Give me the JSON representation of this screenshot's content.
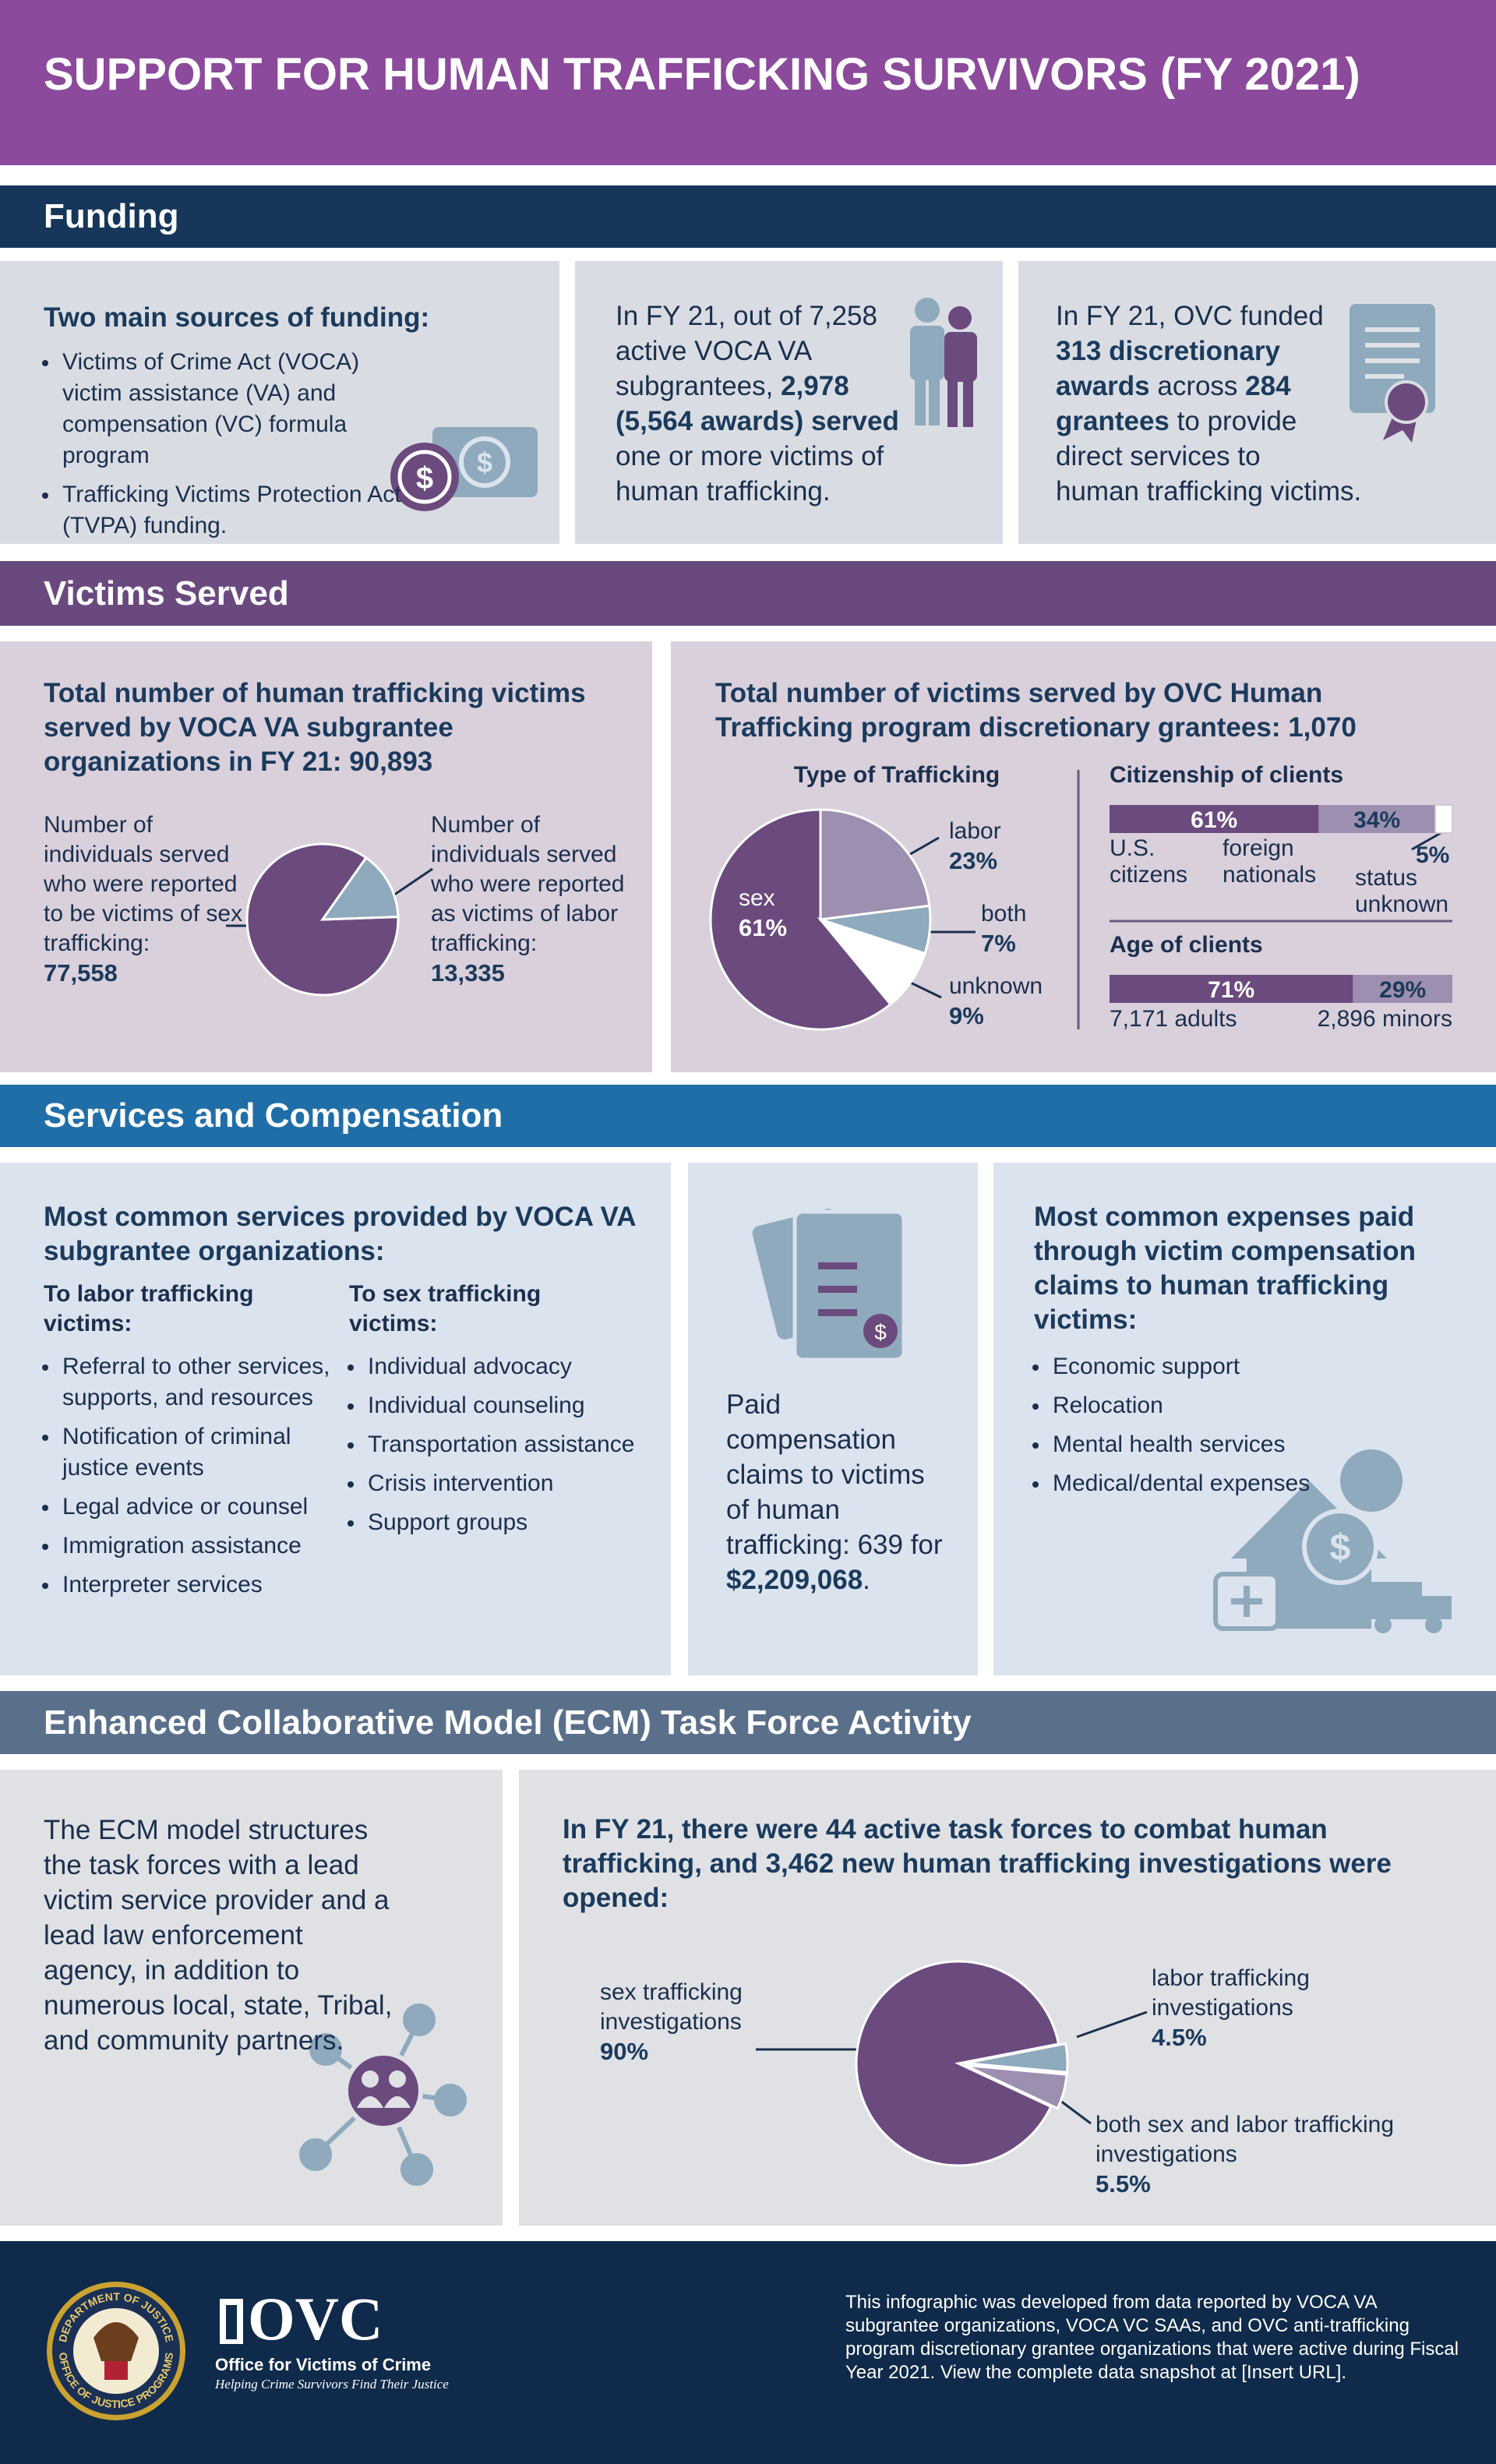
{
  "header": {
    "title": "SUPPORT FOR HUMAN TRAFFICKING SURVIVORS (FY 2021)"
  },
  "funding": {
    "heading": "Funding",
    "sources": {
      "title": "Two main sources of funding:",
      "items": [
        "Victims of Crime Act (VOCA) victim assistance (VA) and compensation (VC) formula program",
        "Trafficking Victims Protection Act (TVPA) funding."
      ]
    },
    "subgrantees": {
      "text": [
        "In FY 21, out of 7,258 active VOCA VA subgrantees, ",
        "2,978 (5,564 awards) served",
        " one or more victims of human trafficking."
      ]
    },
    "discretionary": {
      "text": [
        "In FY 21, OVC funded ",
        "313 discretionary awards",
        " across ",
        "284 grantees",
        " to provide direct services to human trafficking victims."
      ]
    }
  },
  "victims": {
    "heading": "Victims Served",
    "ovc_title": "Total number of victims served by OVC Human Trafficking program discretionary grantees: 1,070"
  },
  "services": {
    "heading": "Services and Compensation",
    "common": {
      "title": "Most common services provided by VOCA VA subgrantee organizations:",
      "labor": {
        "title": "To labor trafficking victims:",
        "items": [
          "Referral to other services, supports, and resources",
          "Notification of criminal justice events",
          "Legal advice or counsel",
          "Immigration assistance",
          "Interpreter services"
        ]
      },
      "sex": {
        "title": "To sex trafficking victims:",
        "items": [
          "Individual advocacy",
          "Individual counseling",
          "Transportation assistance",
          "Crisis intervention",
          "Support groups"
        ]
      }
    },
    "compensation": {
      "text": [
        "Paid compensation claims to victims of human trafficking: 639 for ",
        "$2,209,068",
        "."
      ]
    },
    "expenses": {
      "title": "Most common expenses paid through victim compensation claims to human trafficking victims:",
      "items": [
        "Economic support",
        "Relocation",
        "Mental health services",
        "Medical/dental expenses"
      ]
    }
  },
  "ecm": {
    "heading": "Enhanced Collaborative Model (ECM) Task Force Activity",
    "model_text": "The ECM model structures the task forces with a lead victim service provider and a lead law enforcement agency, in addition to numerous local, state, Tribal, and community partners."
  },
  "footer": {
    "seal_top": "DEPARTMENT OF JUSTICE",
    "seal_bottom": "OFFICE OF JUSTICE PROGRAMS",
    "logo": "OVC",
    "office": "Office for Victims of Crime",
    "tagline": "Helping Crime Survivors Find Their Justice",
    "disclaimer": "This infographic was developed from data reported by VOCA VA subgrantee organizations, VOCA VC SAAs, and OVC anti-trafficking program discretionary grantee organizations that were active during Fiscal Year 2021. View the complete data snapshot at [Insert URL]."
  },
  "chart_data": [
    {
      "type": "pie",
      "title": "Total number of human trafficking victims served by VOCA VA subgrantee organizations in FY 21: 90,893",
      "categories": [
        "Number of individuals served who were reported to be victims of sex trafficking:",
        "Number of individuals served who were reported as victims of labor trafficking:"
      ],
      "values": [
        77558,
        13335
      ],
      "value_labels": [
        "77,558",
        "13,335"
      ],
      "colors": [
        "#6b4a7e",
        "#8fa9bd"
      ]
    },
    {
      "type": "pie",
      "title": "Type of Trafficking",
      "categories": [
        "sex",
        "labor",
        "both",
        "unknown"
      ],
      "values": [
        61,
        23,
        7,
        9
      ],
      "value_labels": [
        "61%",
        "23%",
        "7%",
        "9%"
      ],
      "colors": [
        "#6b4a7e",
        "#9d8fb0",
        "#8fa9bd",
        "#ffffff"
      ]
    },
    {
      "type": "bar",
      "title": "Citizenship of clients",
      "orientation": "horizontal",
      "stacked": true,
      "series": [
        {
          "name": "U.S. citizens",
          "color": "#6b4a7e",
          "values": [
            61
          ],
          "value_labels": [
            "61%"
          ]
        },
        {
          "name": "foreign nationals",
          "color": "#9d8fb0",
          "values": [
            34
          ],
          "value_labels": [
            "34%"
          ]
        },
        {
          "name": "status unknown",
          "color": "#ffffff",
          "values": [
            5
          ],
          "value_labels": [
            "5%"
          ]
        }
      ]
    },
    {
      "type": "bar",
      "title": "Age of clients",
      "orientation": "horizontal",
      "stacked": true,
      "series": [
        {
          "name": "7,171 adults",
          "color": "#6b4a7e",
          "values": [
            71
          ],
          "value_labels": [
            "71%"
          ]
        },
        {
          "name": "2,896 minors",
          "color": "#9d8fb0",
          "values": [
            29
          ],
          "value_labels": [
            "29%"
          ]
        }
      ]
    },
    {
      "type": "pie",
      "title": "In FY 21, there were 44 active task forces to combat human trafficking, and 3,462 new human trafficking investigations were opened:",
      "categories": [
        "sex trafficking investigations",
        "labor trafficking investigations",
        "both sex and labor trafficking investigations"
      ],
      "values": [
        90,
        4.5,
        5.5
      ],
      "value_labels": [
        "90%",
        "4.5%",
        "5.5%"
      ],
      "colors": [
        "#6b4a7e",
        "#8fa9bd",
        "#9d8fb0"
      ]
    }
  ]
}
